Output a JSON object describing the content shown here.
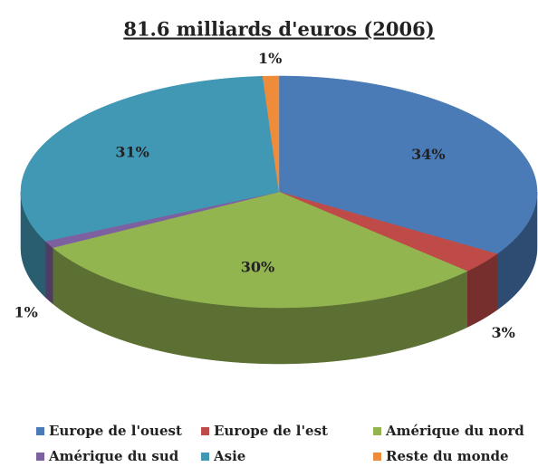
{
  "chart_data": {
    "type": "pie",
    "title": "81.6 milliards d'euros (2006)",
    "categories": [
      "Europe de l'ouest",
      "Europe de l'est",
      "Amérique du nord",
      "Amérique du sud",
      "Asie",
      "Reste du monde"
    ],
    "values": [
      34,
      3,
      30,
      1,
      31,
      1
    ],
    "value_labels": [
      "34%",
      "3%",
      "30%",
      "1%",
      "31%",
      "1%"
    ],
    "colors": [
      "#4a7bb7",
      "#be4b48",
      "#93b550",
      "#7d60a0",
      "#4198b5",
      "#ef8c3c"
    ],
    "legend": "bottom"
  }
}
